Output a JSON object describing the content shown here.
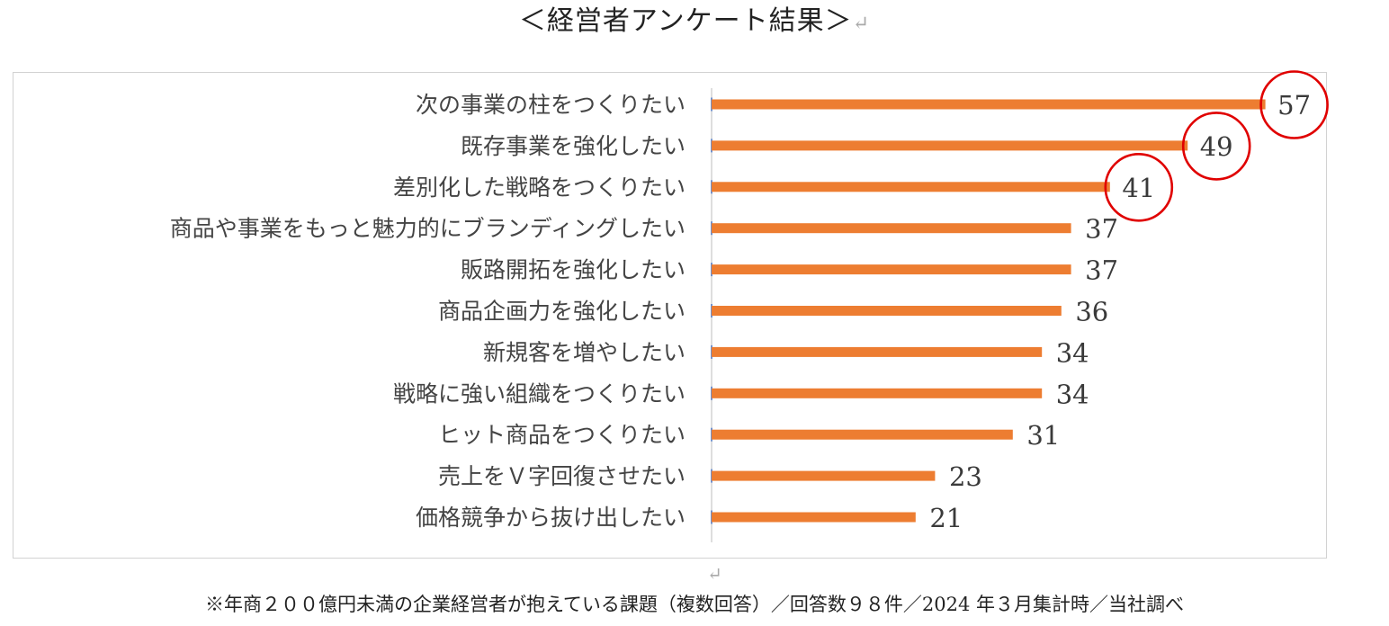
{
  "title": "＜経営者アンケート結果＞",
  "paragraph_mark": "↵",
  "footnote": "※年商２００億円未満の企業経営者が抱えている課題（複数回答）／回答数９８件／2024 年３月集計時／当社調べ",
  "colors": {
    "bar": "#ED7D31",
    "highlight_circle": "#E00000",
    "axis": "#4472C4",
    "frame": "#D2D2D2"
  },
  "chart_data": {
    "type": "bar",
    "orientation": "horizontal",
    "title": "",
    "xlabel": "",
    "ylabel": "",
    "grid": false,
    "legend": "none",
    "xlim": [
      0,
      57
    ],
    "categories": [
      "次の事業の柱をつくりたい",
      "既存事業を強化したい",
      "差別化した戦略をつくりたい",
      "商品や事業をもっと魅力的にブランディングしたい",
      "販路開拓を強化したい",
      "商品企画力を強化したい",
      "新規客を増やしたい",
      "戦略に強い組織をつくりたい",
      "ヒット商品をつくりたい",
      "売上をＶ字回復させたい",
      "価格競争から抜け出したい"
    ],
    "values": [
      57,
      49,
      41,
      37,
      37,
      36,
      34,
      34,
      31,
      23,
      21
    ],
    "data_labels": [
      "57",
      "49",
      "41",
      "37",
      "37",
      "36",
      "34",
      "34",
      "31",
      "23",
      "21"
    ],
    "highlighted": [
      "57",
      "49",
      "41"
    ]
  }
}
